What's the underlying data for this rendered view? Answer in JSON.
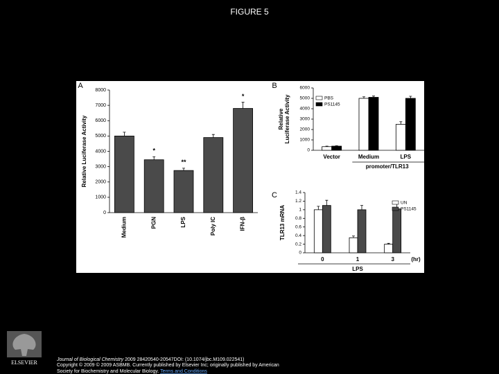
{
  "title": "FIGURE 5",
  "chart_data": [
    {
      "type": "bar",
      "panel": "A",
      "ylabel": "Relative Luciferase Activity",
      "categories": [
        "Medium",
        "PGN",
        "LPS",
        "Poly IC",
        "IFN-β"
      ],
      "values": [
        5000,
        3450,
        2750,
        4900,
        6800
      ],
      "errors": [
        250,
        200,
        150,
        200,
        400
      ],
      "annotations": [
        null,
        "*",
        "**",
        null,
        "*"
      ],
      "color": "#4a4a4a",
      "ylim": [
        0,
        8000
      ],
      "yticks": [
        0,
        1000,
        2000,
        3000,
        4000,
        5000,
        6000,
        7000,
        8000
      ]
    },
    {
      "type": "bar",
      "panel": "B",
      "ylabel": [
        "Relative",
        "Luciferase Activity"
      ],
      "categories": [
        "Vector",
        "Medium",
        "LPS"
      ],
      "group_label": "promoter/TLR13",
      "series": [
        {
          "name": "PBS",
          "color": "#ffffff",
          "values": [
            350,
            5000,
            2500
          ],
          "errors": [
            50,
            150,
            250
          ]
        },
        {
          "name": "PS1145",
          "color": "#000000",
          "values": [
            400,
            5100,
            5000
          ],
          "errors": [
            40,
            120,
            200
          ]
        }
      ],
      "legend": "upper left",
      "ylim": [
        0,
        6000
      ],
      "yticks": [
        0,
        1000,
        2000,
        3000,
        4000,
        5000,
        6000
      ]
    },
    {
      "type": "bar",
      "panel": "C",
      "ylabel": "TLR13 mRNA",
      "xlabel": "LPS",
      "x_unit": "(hr)",
      "categories": [
        "0",
        "1",
        "3"
      ],
      "series": [
        {
          "name": "UN",
          "color": "#ffffff",
          "values": [
            1.0,
            0.35,
            0.2
          ],
          "errors": [
            0.08,
            0.04,
            0.02
          ]
        },
        {
          "name": "PS1145",
          "color": "#4a4a4a",
          "values": [
            1.1,
            1.0,
            1.02
          ],
          "errors": [
            0.12,
            0.1,
            0.15
          ]
        }
      ],
      "legend": "upper right",
      "ylim": [
        0,
        1.4
      ],
      "yticks": [
        0,
        0.2,
        0.4,
        0.6,
        0.8,
        1,
        1.2,
        1.4
      ]
    }
  ],
  "citation": {
    "journal": "Journal of Biological Chemistry",
    "reference": "2009 28420540-20547DOI: (10.1074/jbc.M109.022541)",
    "copyright": [
      "Copyright © 2009 © 2009 ASBMB. Currently published by Elsevier Inc; originally published by American",
      "Society for Biochemistry and Molecular Biology."
    ],
    "link": "Terms and Conditions"
  },
  "logo": "ELSEVIER"
}
